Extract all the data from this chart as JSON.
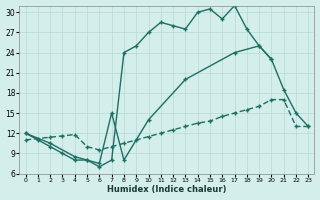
{
  "xlabel": "Humidex (Indice chaleur)",
  "bg_color": "#d4eeeb",
  "grid_color": "#b8d8d4",
  "line_color": "#1e6e64",
  "xlim": [
    -0.5,
    23.5
  ],
  "ylim": [
    6,
    31
  ],
  "yticks": [
    6,
    9,
    12,
    15,
    18,
    21,
    24,
    27,
    30
  ],
  "xticks": [
    0,
    1,
    2,
    3,
    4,
    5,
    6,
    7,
    8,
    9,
    10,
    11,
    12,
    13,
    14,
    15,
    16,
    17,
    18,
    19,
    20,
    21,
    22,
    23
  ],
  "curve1_x": [
    0,
    1,
    2,
    3,
    4,
    5,
    6,
    7,
    8,
    9,
    10,
    11,
    12,
    13,
    14,
    15,
    16,
    17,
    18,
    19,
    20
  ],
  "curve1_y": [
    12,
    11,
    10,
    9,
    8,
    8,
    7,
    8,
    24,
    25,
    27,
    28.5,
    28,
    27.5,
    30,
    30.5,
    29,
    31,
    27.5,
    25,
    23
  ],
  "curve2_x": [
    0,
    2,
    4,
    5,
    6,
    7,
    8,
    10,
    13,
    17,
    19,
    20,
    21,
    22,
    23
  ],
  "curve2_y": [
    12,
    10.5,
    8.5,
    8,
    7.5,
    15,
    8,
    14,
    20,
    24,
    25,
    23,
    18.5,
    15,
    13
  ],
  "curve3_x": [
    0,
    1,
    2,
    3,
    4,
    5,
    6,
    7,
    8,
    9,
    10,
    11,
    12,
    13,
    14,
    15,
    16,
    17,
    18,
    19,
    20,
    21,
    22,
    23
  ],
  "curve3_y": [
    11,
    11.2,
    11.4,
    11.6,
    11.8,
    10,
    9.5,
    10,
    10.5,
    11,
    11.5,
    12,
    12.5,
    13,
    13.5,
    13.8,
    14.5,
    15,
    15.5,
    16,
    17,
    17,
    13,
    13
  ],
  "linewidth": 1.0,
  "markersize": 2.5
}
